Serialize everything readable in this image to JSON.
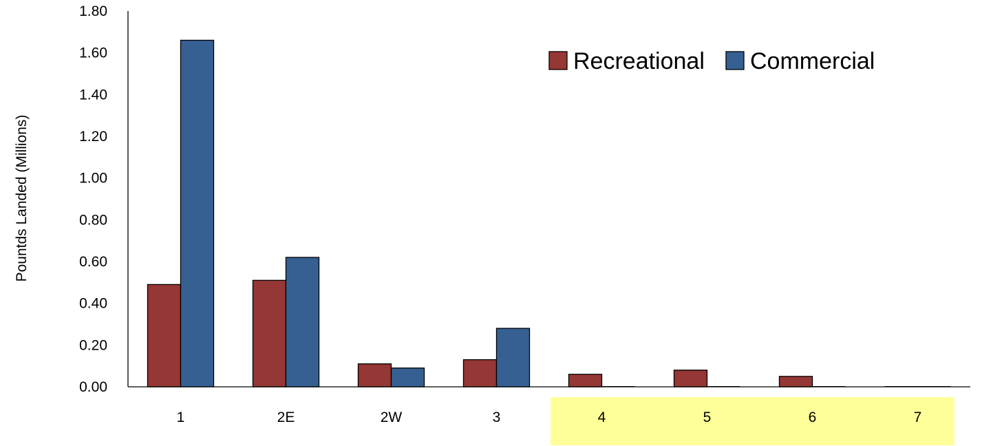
{
  "chart_data": {
    "type": "bar",
    "categories": [
      "1",
      "2E",
      "2W",
      "3",
      "4",
      "5",
      "6",
      "7"
    ],
    "series": [
      {
        "name": "Recreational",
        "color": "#953735",
        "values": [
          0.49,
          0.51,
          0.11,
          0.13,
          0.06,
          0.08,
          0.05,
          0.0
        ]
      },
      {
        "name": "Commercial",
        "color": "#366092",
        "values": [
          1.66,
          0.62,
          0.09,
          0.28,
          0.0,
          0.0,
          0.0,
          0.0
        ]
      }
    ],
    "ylabel": "Pountds Landed (Millions)",
    "xlabel": "",
    "ylim": [
      0,
      1.8
    ],
    "yticks": [
      "0.00",
      "0.20",
      "0.40",
      "0.60",
      "0.80",
      "1.00",
      "1.20",
      "1.40",
      "1.60",
      "1.80"
    ],
    "grid": false,
    "legend_position": "top-right",
    "highlight": {
      "categories": [
        "4",
        "5",
        "6",
        "7"
      ],
      "color": "#ffff99"
    }
  }
}
